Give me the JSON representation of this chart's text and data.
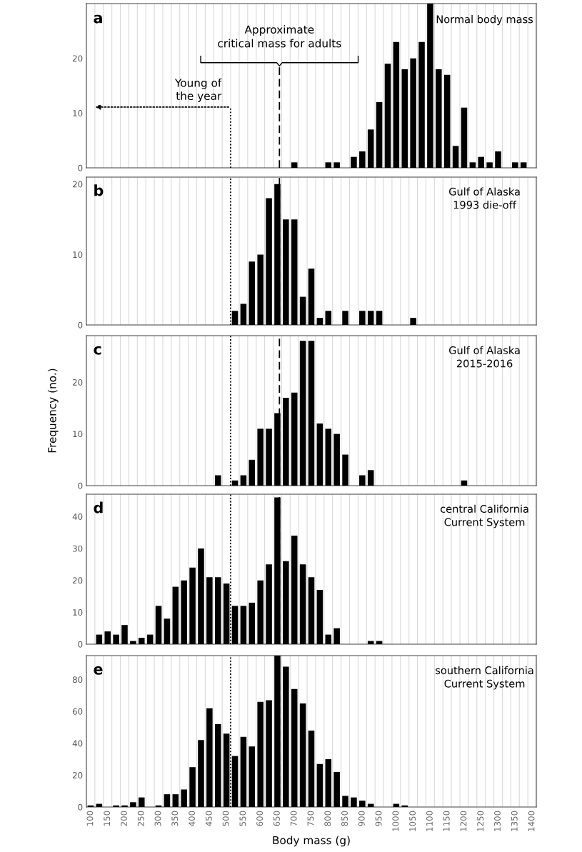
{
  "chart_data": [
    {
      "type": "bar",
      "title": "a",
      "subtitle": "Normal body mass",
      "x": [
        700,
        800,
        825,
        875,
        900,
        925,
        950,
        975,
        1000,
        1025,
        1050,
        1075,
        1100,
        1125,
        1150,
        1175,
        1200,
        1225,
        1250,
        1275,
        1300,
        1350,
        1375
      ],
      "values": [
        1,
        1,
        1,
        2,
        3,
        7,
        12,
        19,
        23,
        18,
        20,
        23,
        30,
        18,
        17,
        4,
        11,
        1,
        2,
        1,
        3,
        1,
        1
      ],
      "color": "#000000",
      "xlim": [
        87.5,
        1412.5
      ],
      "xticks": [
        100,
        150,
        200,
        250,
        300,
        350,
        400,
        450,
        500,
        550,
        600,
        650,
        700,
        750,
        800,
        850,
        900,
        950,
        1000,
        1050,
        1100,
        1150,
        1200,
        1250,
        1300,
        1350,
        1400
      ],
      "ylim": [
        0,
        30
      ],
      "yticks": [
        0,
        10,
        20
      ],
      "grid": "x",
      "tick_labels": "y",
      "ref_lines": [
        {
          "axis": "x",
          "value": 656,
          "line_style": "dashed",
          "label": "Approximate\ncritical mass for adults"
        },
        {
          "axis": "x",
          "value": 512,
          "line_style": "dotted",
          "label": "Young of\nthe year"
        }
      ]
    },
    {
      "type": "bar",
      "title": "b",
      "subtitle": "Gulf of Alaska\n1993 die-off",
      "x": [
        525,
        550,
        575,
        600,
        625,
        650,
        675,
        700,
        725,
        750,
        775,
        800,
        850,
        900,
        925,
        950,
        1050
      ],
      "values": [
        2,
        3,
        9,
        10,
        18,
        20,
        15,
        15,
        4,
        8,
        1,
        2,
        2,
        2,
        2,
        2,
        1
      ],
      "color": "#000000",
      "xlim": [
        87.5,
        1412.5
      ],
      "xticks": [
        100,
        150,
        200,
        250,
        300,
        350,
        400,
        450,
        500,
        550,
        600,
        650,
        700,
        750,
        800,
        850,
        900,
        950,
        1000,
        1050,
        1100,
        1150,
        1200,
        1250,
        1300,
        1350,
        1400
      ],
      "ylim": [
        0,
        21
      ],
      "yticks": [
        0,
        10,
        20
      ],
      "grid": "x",
      "tick_labels": "y",
      "ref_lines": [
        {
          "axis": "x",
          "value": 656,
          "line_style": "dashed"
        },
        {
          "axis": "x",
          "value": 512,
          "line_style": "dotted"
        }
      ]
    },
    {
      "type": "bar",
      "title": "c",
      "subtitle": "Gulf of Alaska\n2015-2016",
      "ylabel": "Frequency (no.)",
      "x": [
        475,
        525,
        550,
        575,
        600,
        625,
        650,
        675,
        700,
        725,
        750,
        775,
        800,
        825,
        850,
        900,
        925,
        1200
      ],
      "values": [
        2,
        1,
        2,
        5,
        11,
        11,
        14,
        17,
        18,
        28,
        28,
        12,
        11,
        10,
        6,
        2,
        3,
        1
      ],
      "color": "#000000",
      "xlim": [
        87.5,
        1412.5
      ],
      "xticks": [
        100,
        150,
        200,
        250,
        300,
        350,
        400,
        450,
        500,
        550,
        600,
        650,
        700,
        750,
        800,
        850,
        900,
        950,
        1000,
        1050,
        1100,
        1150,
        1200,
        1250,
        1300,
        1350,
        1400
      ],
      "ylim": [
        0,
        29
      ],
      "yticks": [
        0,
        10,
        20
      ],
      "grid": "x",
      "tick_labels": "y",
      "ref_lines": [
        {
          "axis": "x",
          "value": 656,
          "line_style": "dashed"
        },
        {
          "axis": "x",
          "value": 512,
          "line_style": "dotted"
        }
      ]
    },
    {
      "type": "bar",
      "title": "d",
      "subtitle": "central California\nCurrent System",
      "x": [
        125,
        150,
        175,
        200,
        225,
        250,
        275,
        300,
        325,
        350,
        375,
        400,
        425,
        450,
        475,
        500,
        525,
        550,
        575,
        600,
        625,
        650,
        675,
        700,
        725,
        750,
        775,
        800,
        825,
        925,
        950
      ],
      "values": [
        3,
        4,
        3,
        6,
        1,
        2,
        3,
        12,
        8,
        18,
        20,
        24,
        30,
        21,
        21,
        19,
        12,
        12,
        13,
        20,
        25,
        46,
        26,
        34,
        25,
        21,
        17,
        3,
        5,
        1,
        1
      ],
      "color": "#000000",
      "xlim": [
        87.5,
        1412.5
      ],
      "xticks": [
        100,
        150,
        200,
        250,
        300,
        350,
        400,
        450,
        500,
        550,
        600,
        650,
        700,
        750,
        800,
        850,
        900,
        950,
        1000,
        1050,
        1100,
        1150,
        1200,
        1250,
        1300,
        1350,
        1400
      ],
      "ylim": [
        0,
        47
      ],
      "yticks": [
        0,
        10,
        20,
        30,
        40
      ],
      "grid": "x",
      "tick_labels": "y",
      "ref_lines": [
        {
          "axis": "x",
          "value": 656,
          "line_style": "dashed"
        },
        {
          "axis": "x",
          "value": 512,
          "line_style": "dotted"
        }
      ]
    },
    {
      "type": "bar",
      "title": "e",
      "subtitle": "southern California\nCurrent System",
      "xlabel": "Body mass (g)",
      "x": [
        100,
        125,
        175,
        200,
        225,
        250,
        300,
        325,
        350,
        375,
        400,
        425,
        450,
        475,
        500,
        525,
        550,
        575,
        600,
        625,
        650,
        675,
        700,
        725,
        750,
        775,
        800,
        825,
        850,
        875,
        900,
        925,
        1000,
        1025
      ],
      "values": [
        1,
        2,
        1,
        1,
        3,
        6,
        1,
        8,
        8,
        11,
        25,
        42,
        62,
        52,
        46,
        32,
        44,
        38,
        66,
        67,
        95,
        88,
        74,
        65,
        48,
        27,
        30,
        22,
        7,
        6,
        4,
        2,
        2,
        1
      ],
      "color": "#000000",
      "xlim": [
        87.5,
        1412.5
      ],
      "xticks": [
        100,
        150,
        200,
        250,
        300,
        350,
        400,
        450,
        500,
        550,
        600,
        650,
        700,
        750,
        800,
        850,
        900,
        950,
        1000,
        1050,
        1100,
        1150,
        1200,
        1250,
        1300,
        1350,
        1400
      ],
      "ylim": [
        0,
        95
      ],
      "yticks": [
        0,
        20,
        40,
        60,
        80
      ],
      "grid": "x",
      "ref_lines": [
        {
          "axis": "x",
          "value": 656,
          "line_style": "dashed"
        },
        {
          "axis": "x",
          "value": 512,
          "line_style": "dotted"
        }
      ]
    }
  ]
}
